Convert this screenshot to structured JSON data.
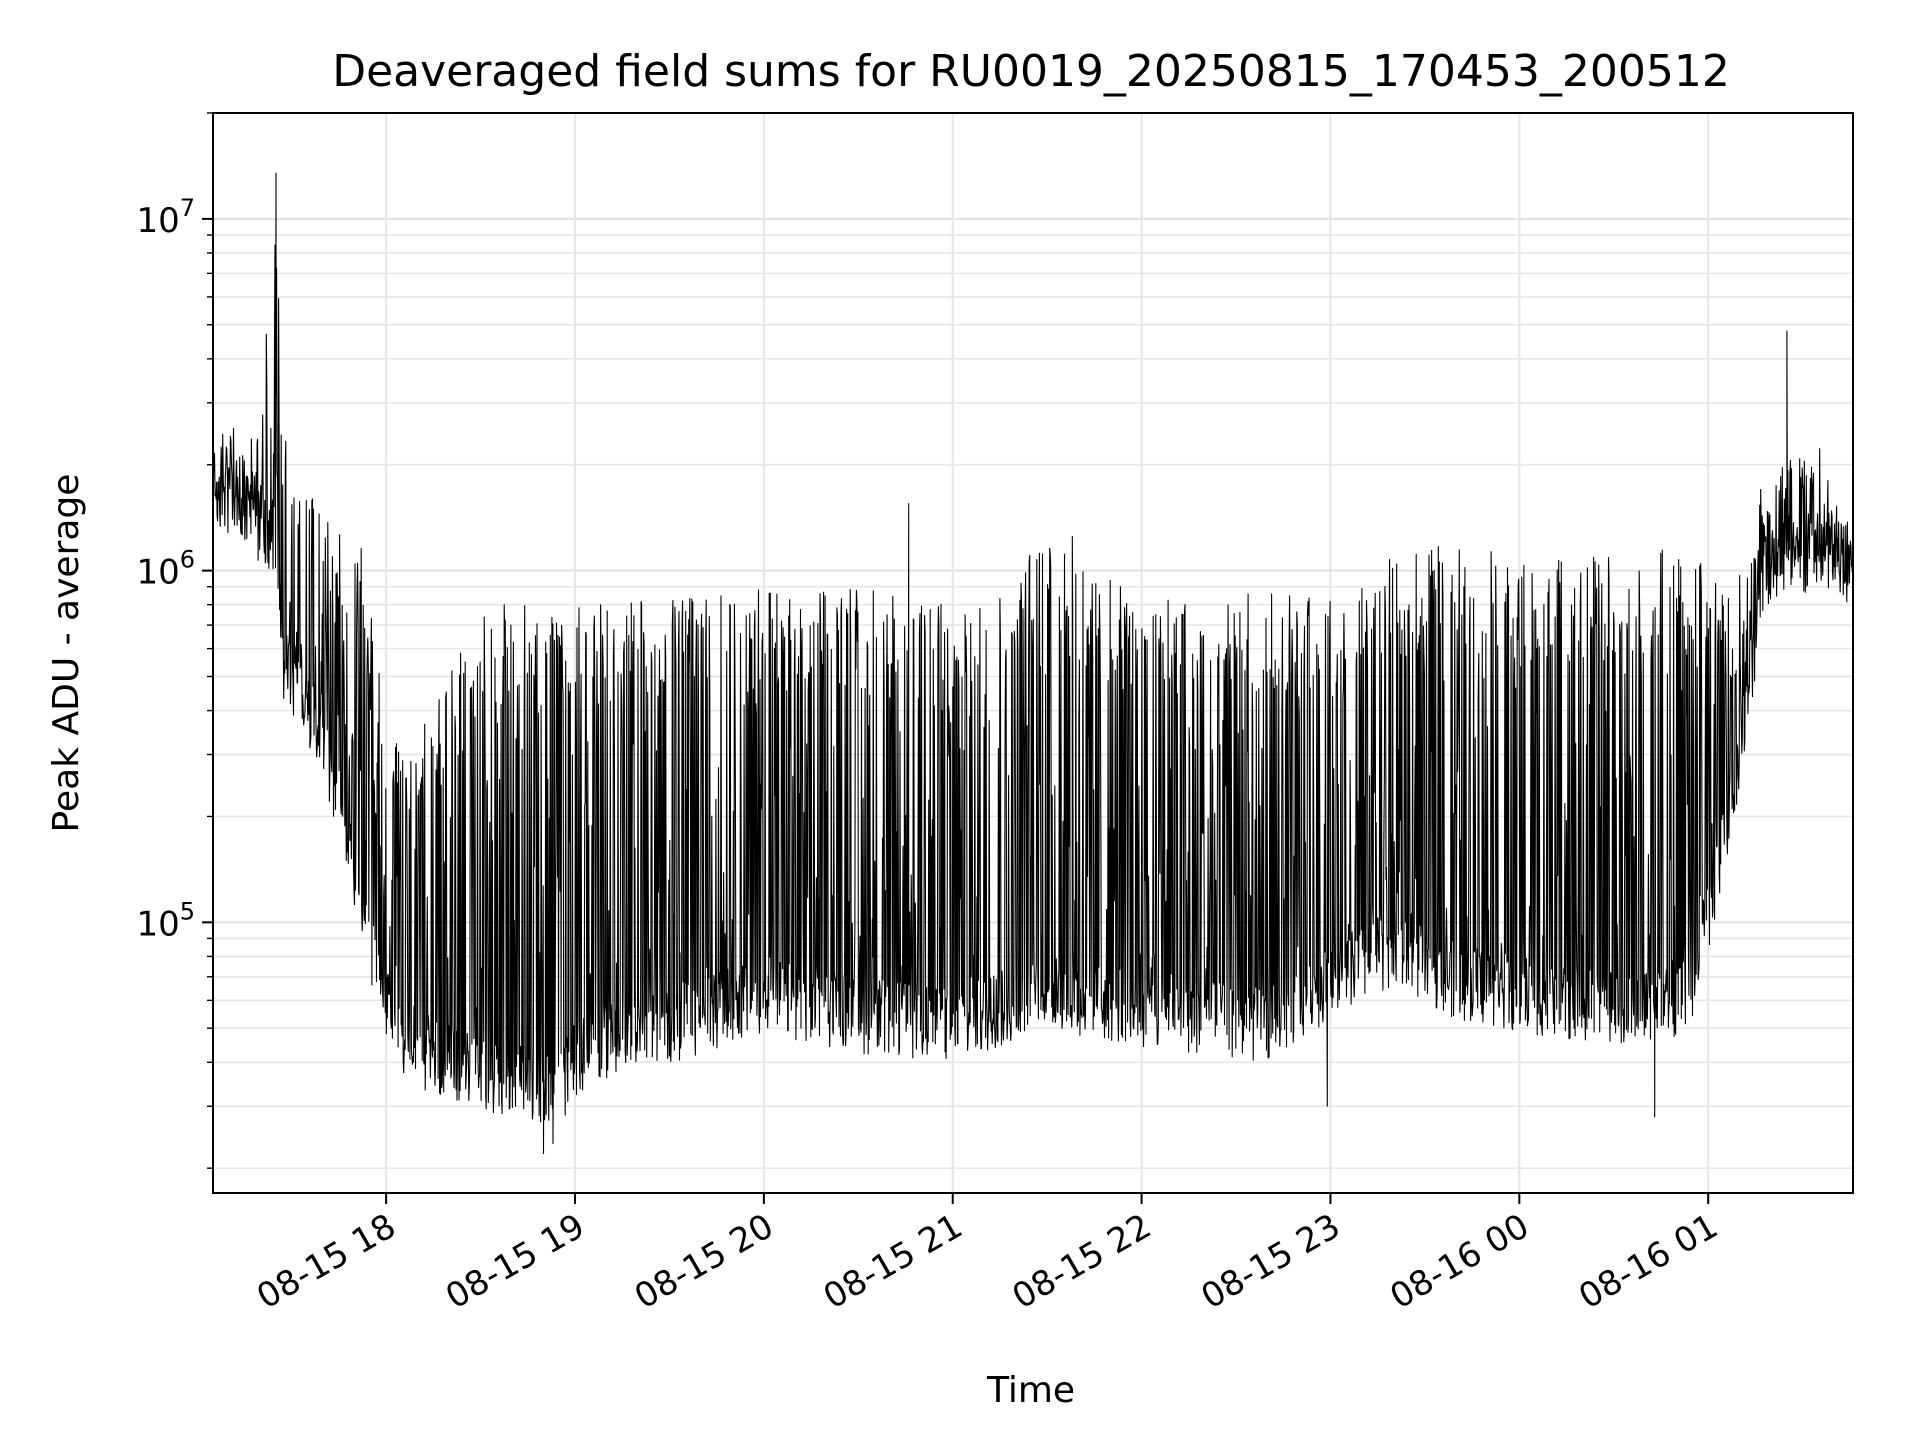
{
  "chart_data": {
    "type": "line",
    "title": "Deaveraged field sums for RU0019_20250815_170453_200512",
    "xlabel": "Time",
    "ylabel": "Peak ADU - average",
    "y_scale": "log",
    "ylim": [
      17000,
      20000000
    ],
    "xlim": [
      "2025-08-15 17:05",
      "2025-08-16 01:46"
    ],
    "grid": true,
    "line_color": "#000000",
    "x_ticks": [
      {
        "value": "2025-08-15 18:00",
        "label": "08-15 18"
      },
      {
        "value": "2025-08-15 19:00",
        "label": "08-15 19"
      },
      {
        "value": "2025-08-15 20:00",
        "label": "08-15 20"
      },
      {
        "value": "2025-08-15 21:00",
        "label": "08-15 21"
      },
      {
        "value": "2025-08-15 22:00",
        "label": "08-15 22"
      },
      {
        "value": "2025-08-15 23:00",
        "label": "08-15 23"
      },
      {
        "value": "2025-08-16 00:00",
        "label": "08-16 00"
      },
      {
        "value": "2025-08-16 01:00",
        "label": "08-16 01"
      }
    ],
    "y_ticks": [
      {
        "value": 100000,
        "base": "10",
        "exp": "5"
      },
      {
        "value": 1000000,
        "base": "10",
        "exp": "6"
      },
      {
        "value": 10000000,
        "base": "10",
        "exp": "7"
      }
    ],
    "envelope": [
      {
        "t": "2025-08-15 17:05",
        "base": 1500000,
        "peak": 2600000
      },
      {
        "t": "2025-08-15 17:20",
        "base": 1200000,
        "peak": 2600000
      },
      {
        "t": "2025-08-15 17:25",
        "base": 1100000,
        "peak": 13500000
      },
      {
        "t": "2025-08-15 17:27",
        "base": 500000,
        "peak": 2500000
      },
      {
        "t": "2025-08-15 17:40",
        "base": 300000,
        "peak": 1400000
      },
      {
        "t": "2025-08-15 17:52",
        "base": 100000,
        "peak": 1200000
      },
      {
        "t": "2025-08-15 17:58",
        "base": 55000,
        "peak": 500000
      },
      {
        "t": "2025-08-15 18:05",
        "base": 40000,
        "peak": 300000
      },
      {
        "t": "2025-08-15 18:30",
        "base": 33000,
        "peak": 800000
      },
      {
        "t": "2025-08-15 18:55",
        "base": 30000,
        "peak": 800000
      },
      {
        "t": "2025-08-15 19:05",
        "base": 40000,
        "peak": 800000
      },
      {
        "t": "2025-08-15 19:30",
        "base": 45000,
        "peak": 850000
      },
      {
        "t": "2025-08-15 20:00",
        "base": 55000,
        "peak": 900000
      },
      {
        "t": "2025-08-15 20:30",
        "base": 48000,
        "peak": 900000
      },
      {
        "t": "2025-08-15 21:00",
        "base": 45000,
        "peak": 800000
      },
      {
        "t": "2025-08-15 21:30",
        "base": 55000,
        "peak": 1200000
      },
      {
        "t": "2025-08-15 22:00",
        "base": 50000,
        "peak": 850000
      },
      {
        "t": "2025-08-15 22:40",
        "base": 45000,
        "peak": 900000
      },
      {
        "t": "2025-08-15 23:00",
        "base": 60000,
        "peak": 850000
      },
      {
        "t": "2025-08-15 23:20",
        "base": 75000,
        "peak": 1100000
      },
      {
        "t": "2025-08-15 23:40",
        "base": 60000,
        "peak": 1200000
      },
      {
        "t": "2025-08-16 00:00",
        "base": 55000,
        "peak": 1100000
      },
      {
        "t": "2025-08-16 00:30",
        "base": 50000,
        "peak": 1100000
      },
      {
        "t": "2025-08-16 00:55",
        "base": 55000,
        "peak": 1200000
      },
      {
        "t": "2025-08-16 01:05",
        "base": 150000,
        "peak": 900000
      },
      {
        "t": "2025-08-16 01:12",
        "base": 350000,
        "peak": 1000000
      },
      {
        "t": "2025-08-16 01:18",
        "base": 900000,
        "peak": 2000000
      },
      {
        "t": "2025-08-16 01:35",
        "base": 950000,
        "peak": 2400000
      },
      {
        "t": "2025-08-16 01:46",
        "base": 950000,
        "peak": 1200000
      }
    ],
    "spikes": [
      {
        "t": "2025-08-15 17:25",
        "value": 13500000
      },
      {
        "t": "2025-08-15 20:46",
        "value": 1550000
      },
      {
        "t": "2025-08-15 21:38",
        "value": 1250000
      },
      {
        "t": "2025-08-16 01:25",
        "value": 4800000
      },
      {
        "t": "2025-08-15 18:50",
        "value": 22000
      },
      {
        "t": "2025-08-15 18:53",
        "value": 23500
      },
      {
        "t": "2025-08-15 22:59",
        "value": 30000
      },
      {
        "t": "2025-08-16 00:43",
        "value": 28000
      }
    ]
  }
}
